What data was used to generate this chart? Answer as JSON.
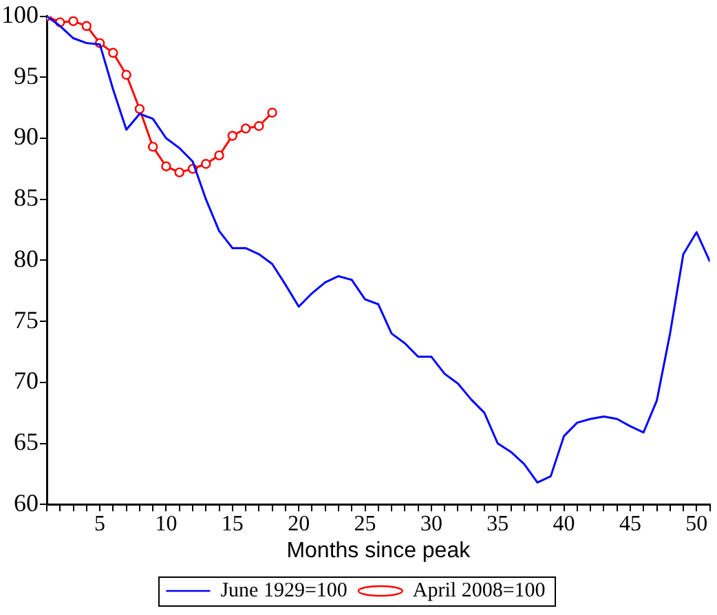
{
  "chart_data": {
    "type": "line",
    "xlabel": "Months since peak",
    "legend": "bottom",
    "grid": false,
    "xlim": [
      1,
      51
    ],
    "xticks": [
      {
        "value": 1,
        "label": null
      },
      {
        "value": 2,
        "label": null
      },
      {
        "value": 3,
        "label": null
      },
      {
        "value": 4,
        "label": null
      },
      5,
      {
        "value": 6,
        "label": null
      },
      {
        "value": 7,
        "label": null
      },
      {
        "value": 8,
        "label": null
      },
      {
        "value": 9,
        "label": null
      },
      10,
      {
        "value": 11,
        "label": null
      },
      {
        "value": 12,
        "label": null
      },
      {
        "value": 13,
        "label": null
      },
      {
        "value": 14,
        "label": null
      },
      15,
      {
        "value": 16,
        "label": null
      },
      {
        "value": 17,
        "label": null
      },
      {
        "value": 18,
        "label": null
      },
      {
        "value": 19,
        "label": null
      },
      20,
      {
        "value": 21,
        "label": null
      },
      {
        "value": 22,
        "label": null
      },
      {
        "value": 23,
        "label": null
      },
      {
        "value": 24,
        "label": null
      },
      25,
      {
        "value": 26,
        "label": null
      },
      {
        "value": 27,
        "label": null
      },
      {
        "value": 28,
        "label": null
      },
      {
        "value": 29,
        "label": null
      },
      30,
      {
        "value": 31,
        "label": null
      },
      {
        "value": 32,
        "label": null
      },
      {
        "value": 33,
        "label": null
      },
      {
        "value": 34,
        "label": null
      },
      35,
      {
        "value": 36,
        "label": null
      },
      {
        "value": 37,
        "label": null
      },
      {
        "value": 38,
        "label": null
      },
      {
        "value": 39,
        "label": null
      },
      40,
      {
        "value": 41,
        "label": null
      },
      {
        "value": 42,
        "label": null
      },
      {
        "value": 43,
        "label": null
      },
      {
        "value": 44,
        "label": null
      },
      45,
      {
        "value": 46,
        "label": null
      },
      {
        "value": 47,
        "label": null
      },
      {
        "value": 48,
        "label": null
      },
      {
        "value": 49,
        "label": null
      },
      50,
      {
        "value": 51,
        "label": null
      }
    ],
    "ylim": [
      60,
      100
    ],
    "yticks": [
      60,
      65,
      70,
      75,
      80,
      85,
      90,
      95,
      100
    ],
    "series": [
      {
        "name": "June 1929=100",
        "color": "#0000ff",
        "marker": "none",
        "x": [
          1,
          2,
          3,
          4,
          5,
          6,
          7,
          8,
          9,
          10,
          11,
          12,
          13,
          14,
          15,
          16,
          17,
          18,
          19,
          20,
          21,
          22,
          23,
          24,
          25,
          26,
          27,
          28,
          29,
          30,
          31,
          32,
          33,
          34,
          35,
          36,
          37,
          38,
          39,
          40,
          41,
          42,
          43,
          44,
          45,
          46,
          47,
          48,
          49,
          50,
          51
        ],
        "values": [
          100,
          99.2,
          98.2,
          97.8,
          97.7,
          94,
          90.7,
          92,
          91.6,
          90,
          89.2,
          88.1,
          85,
          82.4,
          81,
          81,
          80.5,
          79.7,
          78,
          76.2,
          77.3,
          78.2,
          78.7,
          78.4,
          76.8,
          76.4,
          74,
          73.2,
          72.1,
          72.1,
          70.7,
          69.9,
          68.6,
          67.5,
          65,
          64.3,
          63.3,
          61.8,
          62.3,
          65.6,
          66.7,
          67,
          67.2,
          67,
          66.4,
          65.9,
          68.5,
          74,
          80.5,
          82.3,
          79.9
        ]
      },
      {
        "name": "April 2008=100",
        "color": "#ff0000",
        "marker": "circle",
        "x": [
          1,
          2,
          3,
          4,
          5,
          6,
          7,
          8,
          9,
          10,
          11,
          12,
          13,
          14,
          15,
          16,
          17,
          18
        ],
        "values": [
          100,
          99.5,
          99.6,
          99.2,
          97.8,
          97,
          95.2,
          92.4,
          89.3,
          87.7,
          87.2,
          87.5,
          87.9,
          88.6,
          90.2,
          90.8,
          91,
          92.1
        ]
      }
    ]
  }
}
